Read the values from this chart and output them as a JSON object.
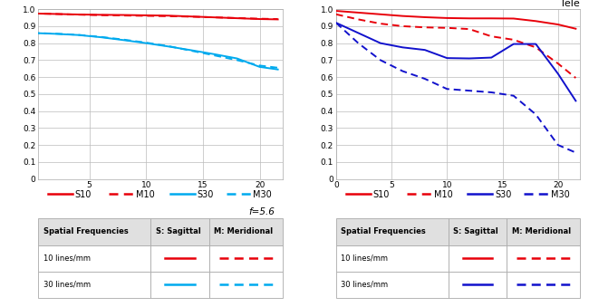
{
  "left_chart": {
    "S10": {
      "x": [
        0,
        2,
        4,
        6,
        8,
        10,
        12,
        14,
        16,
        18,
        20,
        21.6
      ],
      "y": [
        0.975,
        0.972,
        0.969,
        0.967,
        0.966,
        0.964,
        0.962,
        0.957,
        0.952,
        0.947,
        0.942,
        0.94
      ]
    },
    "M10": {
      "x": [
        0,
        2,
        4,
        6,
        8,
        10,
        12,
        14,
        16,
        18,
        20,
        21.6
      ],
      "y": [
        0.975,
        0.972,
        0.968,
        0.965,
        0.963,
        0.961,
        0.959,
        0.956,
        0.952,
        0.948,
        0.944,
        0.942
      ]
    },
    "S30": {
      "x": [
        0,
        2,
        4,
        6,
        8,
        10,
        12,
        14,
        16,
        18,
        20,
        21.6
      ],
      "y": [
        0.86,
        0.855,
        0.848,
        0.835,
        0.818,
        0.8,
        0.78,
        0.758,
        0.735,
        0.71,
        0.66,
        0.645
      ]
    },
    "M30": {
      "x": [
        0,
        2,
        4,
        6,
        8,
        10,
        12,
        14,
        16,
        18,
        20,
        21.6
      ],
      "y": [
        0.86,
        0.856,
        0.849,
        0.837,
        0.821,
        0.803,
        0.782,
        0.755,
        0.728,
        0.7,
        0.668,
        0.655
      ]
    }
  },
  "right_chart": {
    "title": "Tele",
    "S10": {
      "x": [
        0,
        2,
        4,
        6,
        8,
        10,
        12,
        14,
        16,
        18,
        20,
        21.6
      ],
      "y": [
        0.99,
        0.98,
        0.97,
        0.96,
        0.953,
        0.948,
        0.946,
        0.946,
        0.945,
        0.93,
        0.91,
        0.885
      ]
    },
    "M10": {
      "x": [
        0,
        2,
        4,
        6,
        8,
        10,
        12,
        14,
        16,
        18,
        20,
        21.6
      ],
      "y": [
        0.97,
        0.94,
        0.915,
        0.9,
        0.893,
        0.89,
        0.883,
        0.84,
        0.82,
        0.775,
        0.68,
        0.595
      ]
    },
    "S30": {
      "x": [
        0,
        2,
        4,
        6,
        8,
        10,
        12,
        14,
        16,
        18,
        20,
        21.6
      ],
      "y": [
        0.92,
        0.86,
        0.8,
        0.775,
        0.76,
        0.712,
        0.71,
        0.715,
        0.795,
        0.795,
        0.62,
        0.46
      ]
    },
    "M30": {
      "x": [
        0,
        2,
        4,
        6,
        8,
        10,
        12,
        14,
        16,
        18,
        20,
        21.6
      ],
      "y": [
        0.92,
        0.8,
        0.7,
        0.635,
        0.59,
        0.53,
        0.52,
        0.51,
        0.49,
        0.38,
        0.2,
        0.155
      ]
    }
  },
  "colors": {
    "red": "#e8000a",
    "blue": "#1111cc",
    "cyan": "#00aaee",
    "grid": "#bbbbbb",
    "bg": "#ffffff"
  },
  "ylim": [
    0,
    1.0
  ],
  "xlim_left": [
    0.5,
    22
  ],
  "xlim_right": [
    0,
    22
  ],
  "xticks_left": [
    5,
    10,
    15,
    20
  ],
  "xticks_right": [
    0,
    5,
    10,
    15,
    20
  ],
  "yticks": [
    0,
    0.1,
    0.2,
    0.3,
    0.4,
    0.5,
    0.6,
    0.7,
    0.8,
    0.9,
    1.0
  ],
  "table_headers": [
    "Spatial Frequencies",
    "S: Sagittal",
    "M: Meridional"
  ],
  "table_rows": [
    "10 lines/mm",
    "30 lines/mm"
  ],
  "note": "f=5.6"
}
